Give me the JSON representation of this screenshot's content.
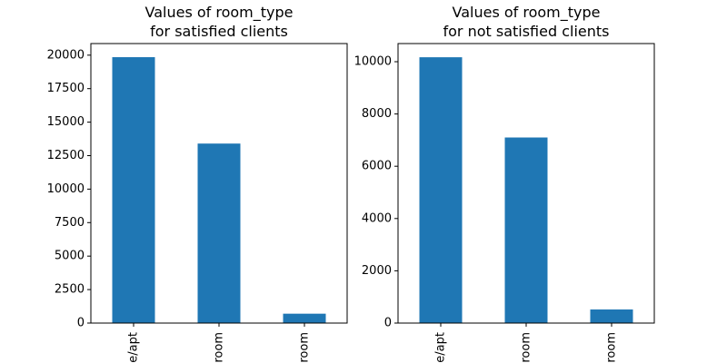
{
  "chart_data": [
    {
      "type": "bar",
      "title": [
        "Values of room_type",
        "for satisfied clients"
      ],
      "categories": [
        "e/apt",
        "room",
        "room"
      ],
      "values": [
        19850,
        13400,
        700
      ],
      "color": "#1f77b4",
      "ylim": [
        0,
        20866
      ],
      "yticks": [
        0,
        2500,
        5000,
        7500,
        10000,
        12500,
        15000,
        17500,
        20000
      ]
    },
    {
      "type": "bar",
      "title": [
        "Values of room_type",
        "for not satisfied clients"
      ],
      "categories": [
        "e/apt",
        "room",
        "room"
      ],
      "values": [
        10170,
        7100,
        520
      ],
      "color": "#1f77b4",
      "ylim": [
        0,
        10694
      ],
      "yticks": [
        0,
        2000,
        4000,
        6000,
        8000,
        10000
      ]
    }
  ]
}
